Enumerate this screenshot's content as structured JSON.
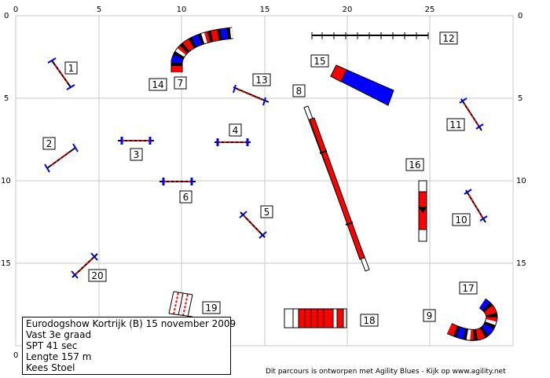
{
  "axis": {
    "top_ticks": [
      "0",
      "5",
      "10",
      "15",
      "20",
      "25"
    ],
    "left_ticks": [
      "0",
      "5",
      "10",
      "15"
    ],
    "right_ticks": [
      "0",
      "5",
      "10",
      "15"
    ],
    "bottom_tick": "0"
  },
  "obstacles": [
    {
      "number": "1",
      "kind": "hurdle"
    },
    {
      "number": "2",
      "kind": "hurdle"
    },
    {
      "number": "3",
      "kind": "hurdle"
    },
    {
      "number": "4",
      "kind": "hurdle"
    },
    {
      "number": "5",
      "kind": "hurdle"
    },
    {
      "number": "6",
      "kind": "hurdle"
    },
    {
      "number": "7",
      "kind": "tunnel"
    },
    {
      "number": "8",
      "kind": "dogwalk"
    },
    {
      "number": "9",
      "kind": "tunnel"
    },
    {
      "number": "10",
      "kind": "hurdle"
    },
    {
      "number": "11",
      "kind": "hurdle"
    },
    {
      "number": "12",
      "kind": "weave-poles"
    },
    {
      "number": "13",
      "kind": "hurdle"
    },
    {
      "number": "14",
      "kind": "tunnel-entry"
    },
    {
      "number": "15",
      "kind": "chute"
    },
    {
      "number": "16",
      "kind": "seesaw"
    },
    {
      "number": "17",
      "kind": "tunnel-exit"
    },
    {
      "number": "18",
      "kind": "tunnel"
    },
    {
      "number": "19",
      "kind": "hurdle"
    },
    {
      "number": "20",
      "kind": "hurdle"
    }
  ],
  "info": {
    "line1": "Eurodogshow Kortrijk (B) 15 november 2009",
    "line2": "Vast 3e graad",
    "line3": "SPT 41 sec",
    "line4": "Lengte 157 m",
    "line5": "Kees Stoel"
  },
  "credit": "Dit parcours is ontworpen met Agility Blues - Kijk op www.agility.net",
  "colors": {
    "red": "#ff0000",
    "blue": "#0000ff",
    "grid": "#c8c8c8"
  }
}
